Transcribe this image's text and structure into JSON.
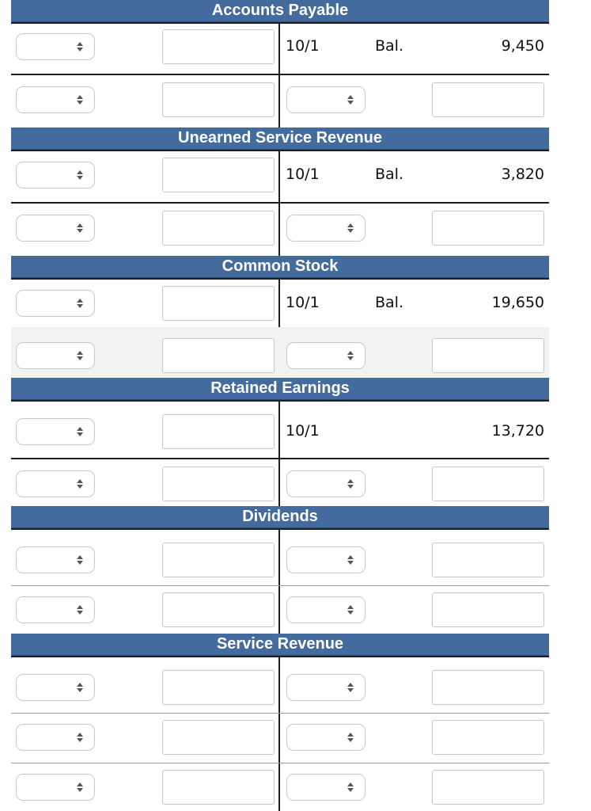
{
  "accounts": [
    {
      "title": "Accounts Payable",
      "balance_date": "10/1",
      "balance_label": "Bal.",
      "balance_amount": "9,450"
    },
    {
      "title": "Unearned Service Revenue",
      "balance_date": "10/1",
      "balance_label": "Bal.",
      "balance_amount": "3,820"
    },
    {
      "title": "Common Stock",
      "balance_date": "10/1",
      "balance_label": "Bal.",
      "balance_amount": "19,650"
    },
    {
      "title": "Retained Earnings",
      "balance_date": "10/1",
      "balance_label": "",
      "balance_amount": "13,720"
    },
    {
      "title": "Dividends"
    },
    {
      "title": "Service Revenue"
    }
  ],
  "dropdown": {
    "selected_value": ""
  },
  "colors": {
    "header_bg": "#436b9d",
    "header_text": "#ffffff",
    "rule": "#1f1f1f",
    "shaded_row": "#f2f2f2"
  },
  "icons": {
    "select_arrows": "up-down-arrows-icon"
  }
}
